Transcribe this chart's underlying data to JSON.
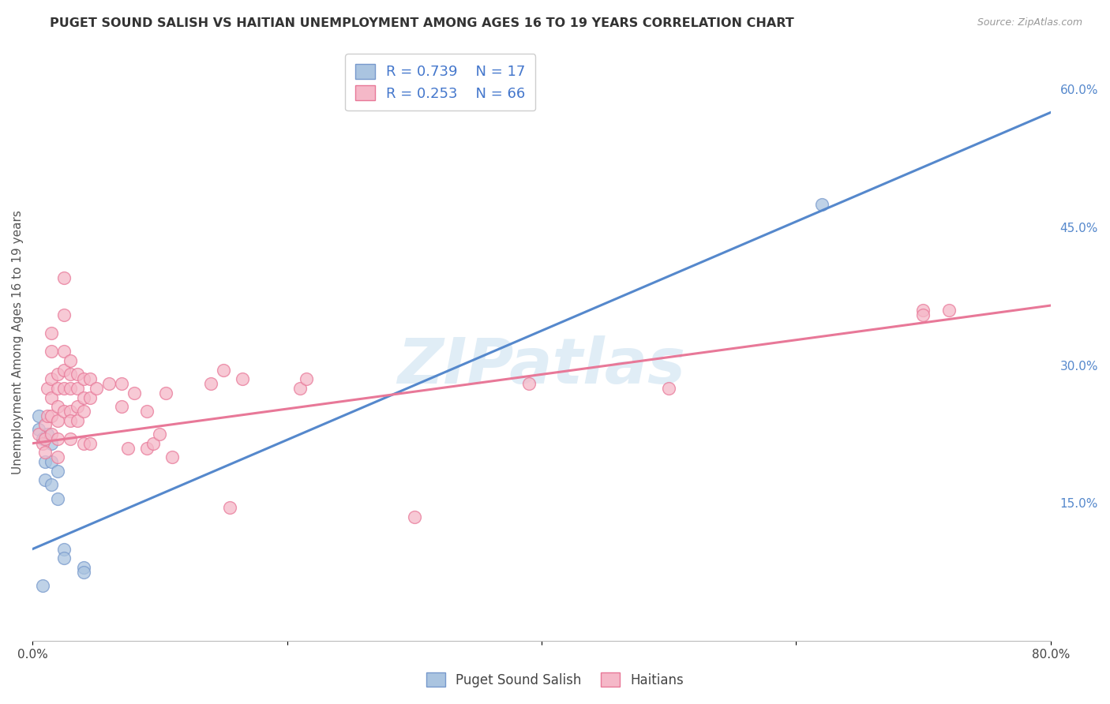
{
  "title": "PUGET SOUND SALISH VS HAITIAN UNEMPLOYMENT AMONG AGES 16 TO 19 YEARS CORRELATION CHART",
  "source": "Source: ZipAtlas.com",
  "ylabel": "Unemployment Among Ages 16 to 19 years",
  "xlim": [
    0.0,
    0.8
  ],
  "ylim": [
    0.0,
    0.65
  ],
  "xtick_vals": [
    0.0,
    0.2,
    0.4,
    0.6,
    0.8
  ],
  "xticklabels": [
    "0.0%",
    "",
    "",
    "",
    "80.0%"
  ],
  "yticks_right": [
    0.15,
    0.3,
    0.45,
    0.6
  ],
  "ytick_labels_right": [
    "15.0%",
    "30.0%",
    "45.0%",
    "60.0%"
  ],
  "background_color": "#ffffff",
  "grid_color": "#d8d8e8",
  "blue_scatter_face": "#aac4e0",
  "blue_scatter_edge": "#7799cc",
  "pink_scatter_face": "#f5b8c8",
  "pink_scatter_edge": "#e87898",
  "blue_line_color": "#5588cc",
  "pink_line_color": "#e87898",
  "legend_label1": "Puget Sound Salish",
  "legend_label2": "Haitians",
  "watermark": "ZIPatlas",
  "blue_r": 0.739,
  "pink_r": 0.253,
  "blue_n": 17,
  "pink_n": 66,
  "blue_line_x0": 0.0,
  "blue_line_y0": 0.1,
  "blue_line_x1": 0.8,
  "blue_line_y1": 0.575,
  "pink_line_x0": 0.0,
  "pink_line_y0": 0.215,
  "pink_line_x1": 0.8,
  "pink_line_y1": 0.365,
  "blue_points_x": [
    0.005,
    0.005,
    0.008,
    0.01,
    0.01,
    0.012,
    0.015,
    0.015,
    0.015,
    0.02,
    0.02,
    0.025,
    0.025,
    0.04,
    0.04,
    0.62,
    0.008
  ],
  "blue_points_y": [
    0.245,
    0.23,
    0.22,
    0.195,
    0.175,
    0.225,
    0.215,
    0.195,
    0.17,
    0.185,
    0.155,
    0.1,
    0.09,
    0.08,
    0.075,
    0.475,
    0.06
  ],
  "pink_points_x": [
    0.005,
    0.008,
    0.01,
    0.01,
    0.01,
    0.012,
    0.012,
    0.015,
    0.015,
    0.015,
    0.015,
    0.015,
    0.015,
    0.02,
    0.02,
    0.02,
    0.02,
    0.02,
    0.02,
    0.025,
    0.025,
    0.025,
    0.025,
    0.025,
    0.025,
    0.03,
    0.03,
    0.03,
    0.03,
    0.03,
    0.03,
    0.035,
    0.035,
    0.035,
    0.035,
    0.04,
    0.04,
    0.04,
    0.04,
    0.045,
    0.045,
    0.045,
    0.05,
    0.06,
    0.07,
    0.07,
    0.075,
    0.08,
    0.09,
    0.09,
    0.095,
    0.1,
    0.105,
    0.11,
    0.14,
    0.15,
    0.155,
    0.165,
    0.21,
    0.215,
    0.3,
    0.39,
    0.5,
    0.7,
    0.7,
    0.72
  ],
  "pink_points_y": [
    0.225,
    0.215,
    0.235,
    0.22,
    0.205,
    0.275,
    0.245,
    0.335,
    0.315,
    0.285,
    0.265,
    0.245,
    0.225,
    0.29,
    0.275,
    0.255,
    0.24,
    0.22,
    0.2,
    0.395,
    0.355,
    0.315,
    0.295,
    0.275,
    0.25,
    0.305,
    0.29,
    0.275,
    0.25,
    0.24,
    0.22,
    0.29,
    0.275,
    0.255,
    0.24,
    0.285,
    0.265,
    0.25,
    0.215,
    0.285,
    0.265,
    0.215,
    0.275,
    0.28,
    0.28,
    0.255,
    0.21,
    0.27,
    0.25,
    0.21,
    0.215,
    0.225,
    0.27,
    0.2,
    0.28,
    0.295,
    0.145,
    0.285,
    0.275,
    0.285,
    0.135,
    0.28,
    0.275,
    0.36,
    0.355,
    0.36
  ]
}
